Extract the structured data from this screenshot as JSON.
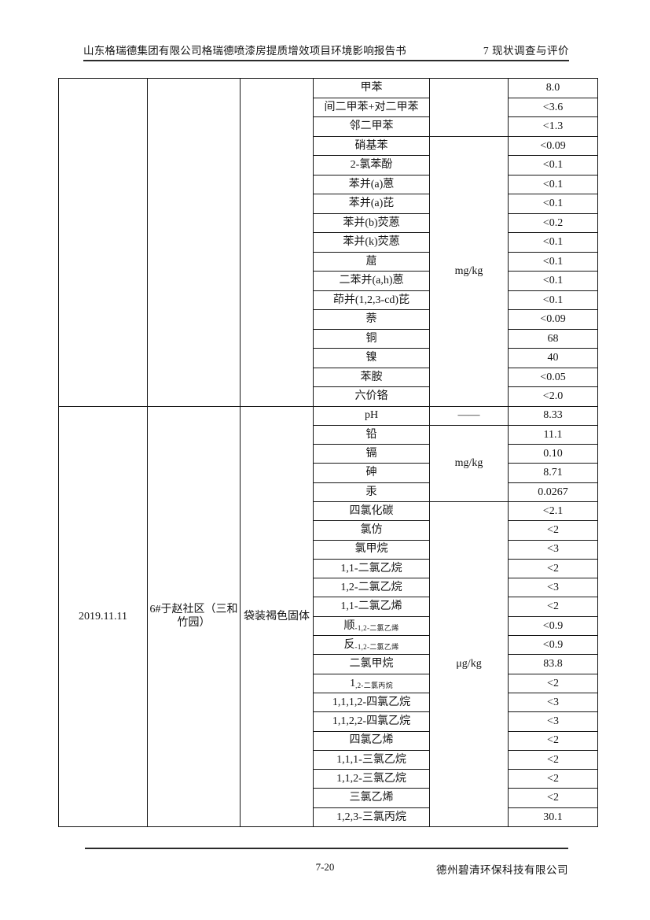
{
  "header": {
    "report_title": "山东格瑞德集团有限公司格瑞德喷漆房提质增效项目环境影响报告书",
    "section_title": "7 现状调查与评价"
  },
  "footer": {
    "page_number": "7-20",
    "company": "德州碧清环保科技有限公司"
  },
  "table": {
    "sections": [
      {
        "date": "",
        "location": "",
        "sample": "",
        "groups": [
          {
            "unit": "",
            "rows": [
              {
                "param": "甲苯",
                "value": "8.0"
              },
              {
                "param": "间二甲苯+对二甲苯",
                "value": "<3.6"
              },
              {
                "param": "邻二甲苯",
                "value": "<1.3"
              }
            ]
          },
          {
            "unit": "mg/kg",
            "rows": [
              {
                "param": "硝基苯",
                "value": "<0.09"
              },
              {
                "param": "2-氯苯酚",
                "value": "<0.1"
              },
              {
                "param": "苯并(a)蒽",
                "value": "<0.1"
              },
              {
                "param": "苯并(a)芘",
                "value": "<0.1"
              },
              {
                "param": "苯并(b)荧蒽",
                "value": "<0.2"
              },
              {
                "param": "苯并(k)荧蒽",
                "value": "<0.1"
              },
              {
                "param": "䓛",
                "value": "<0.1"
              },
              {
                "param": "二苯并(a,h)蒽",
                "value": "<0.1"
              },
              {
                "param": "茚并(1,2,3-cd)芘",
                "value": "<0.1"
              },
              {
                "param": "萘",
                "value": "<0.09"
              },
              {
                "param": "铜",
                "value": "68"
              },
              {
                "param": "镍",
                "value": "40"
              },
              {
                "param": "苯胺",
                "value": "<0.05"
              },
              {
                "param": "六价铬",
                "value": "<2.0"
              }
            ]
          }
        ]
      },
      {
        "date": "2019.11.11",
        "location": "6#于赵社区（三和竹园）",
        "sample": "袋装褐色固体",
        "groups": [
          {
            "unit": "——",
            "rows": [
              {
                "param": "pH",
                "value": "8.33"
              }
            ]
          },
          {
            "unit": "mg/kg",
            "rows": [
              {
                "param": "铅",
                "value": "11.1"
              },
              {
                "param": "镉",
                "value": "0.10"
              },
              {
                "param": "砷",
                "value": "8.71"
              },
              {
                "param": "汞",
                "value": "0.0267"
              }
            ]
          },
          {
            "unit": "μg/kg",
            "rows": [
              {
                "param": "四氯化碳",
                "value": "<2.1"
              },
              {
                "param": "氯仿",
                "value": "<2"
              },
              {
                "param": "氯甲烷",
                "value": "<3"
              },
              {
                "param": "1,1-二氯乙烷",
                "value": "<2"
              },
              {
                "param": "1,2-二氯乙烷",
                "value": "<3"
              },
              {
                "param": "1,1-二氯乙烯",
                "value": "<2"
              },
              {
                "param": {
                  "main": "顺",
                  "sub": "-1,2-二氯乙烯"
                },
                "value": "<0.9"
              },
              {
                "param": {
                  "main": "反",
                  "sub": "-1,2-二氯乙烯"
                },
                "value": "<0.9"
              },
              {
                "param": "二氯甲烷",
                "value": "83.8"
              },
              {
                "param": {
                  "main": "1",
                  "sub": ",2-二氯丙烷"
                },
                "value": "<2"
              },
              {
                "param": "1,1,1,2-四氯乙烷",
                "value": "<3"
              },
              {
                "param": "1,1,2,2-四氯乙烷",
                "value": "<3"
              },
              {
                "param": "四氯乙烯",
                "value": "<2"
              },
              {
                "param": "1,1,1-三氯乙烷",
                "value": "<2"
              },
              {
                "param": "1,1,2-三氯乙烷",
                "value": "<2"
              },
              {
                "param": "三氯乙烯",
                "value": "<2"
              },
              {
                "param": "1,2,3-三氯丙烷",
                "value": "30.1"
              }
            ]
          }
        ]
      }
    ]
  }
}
